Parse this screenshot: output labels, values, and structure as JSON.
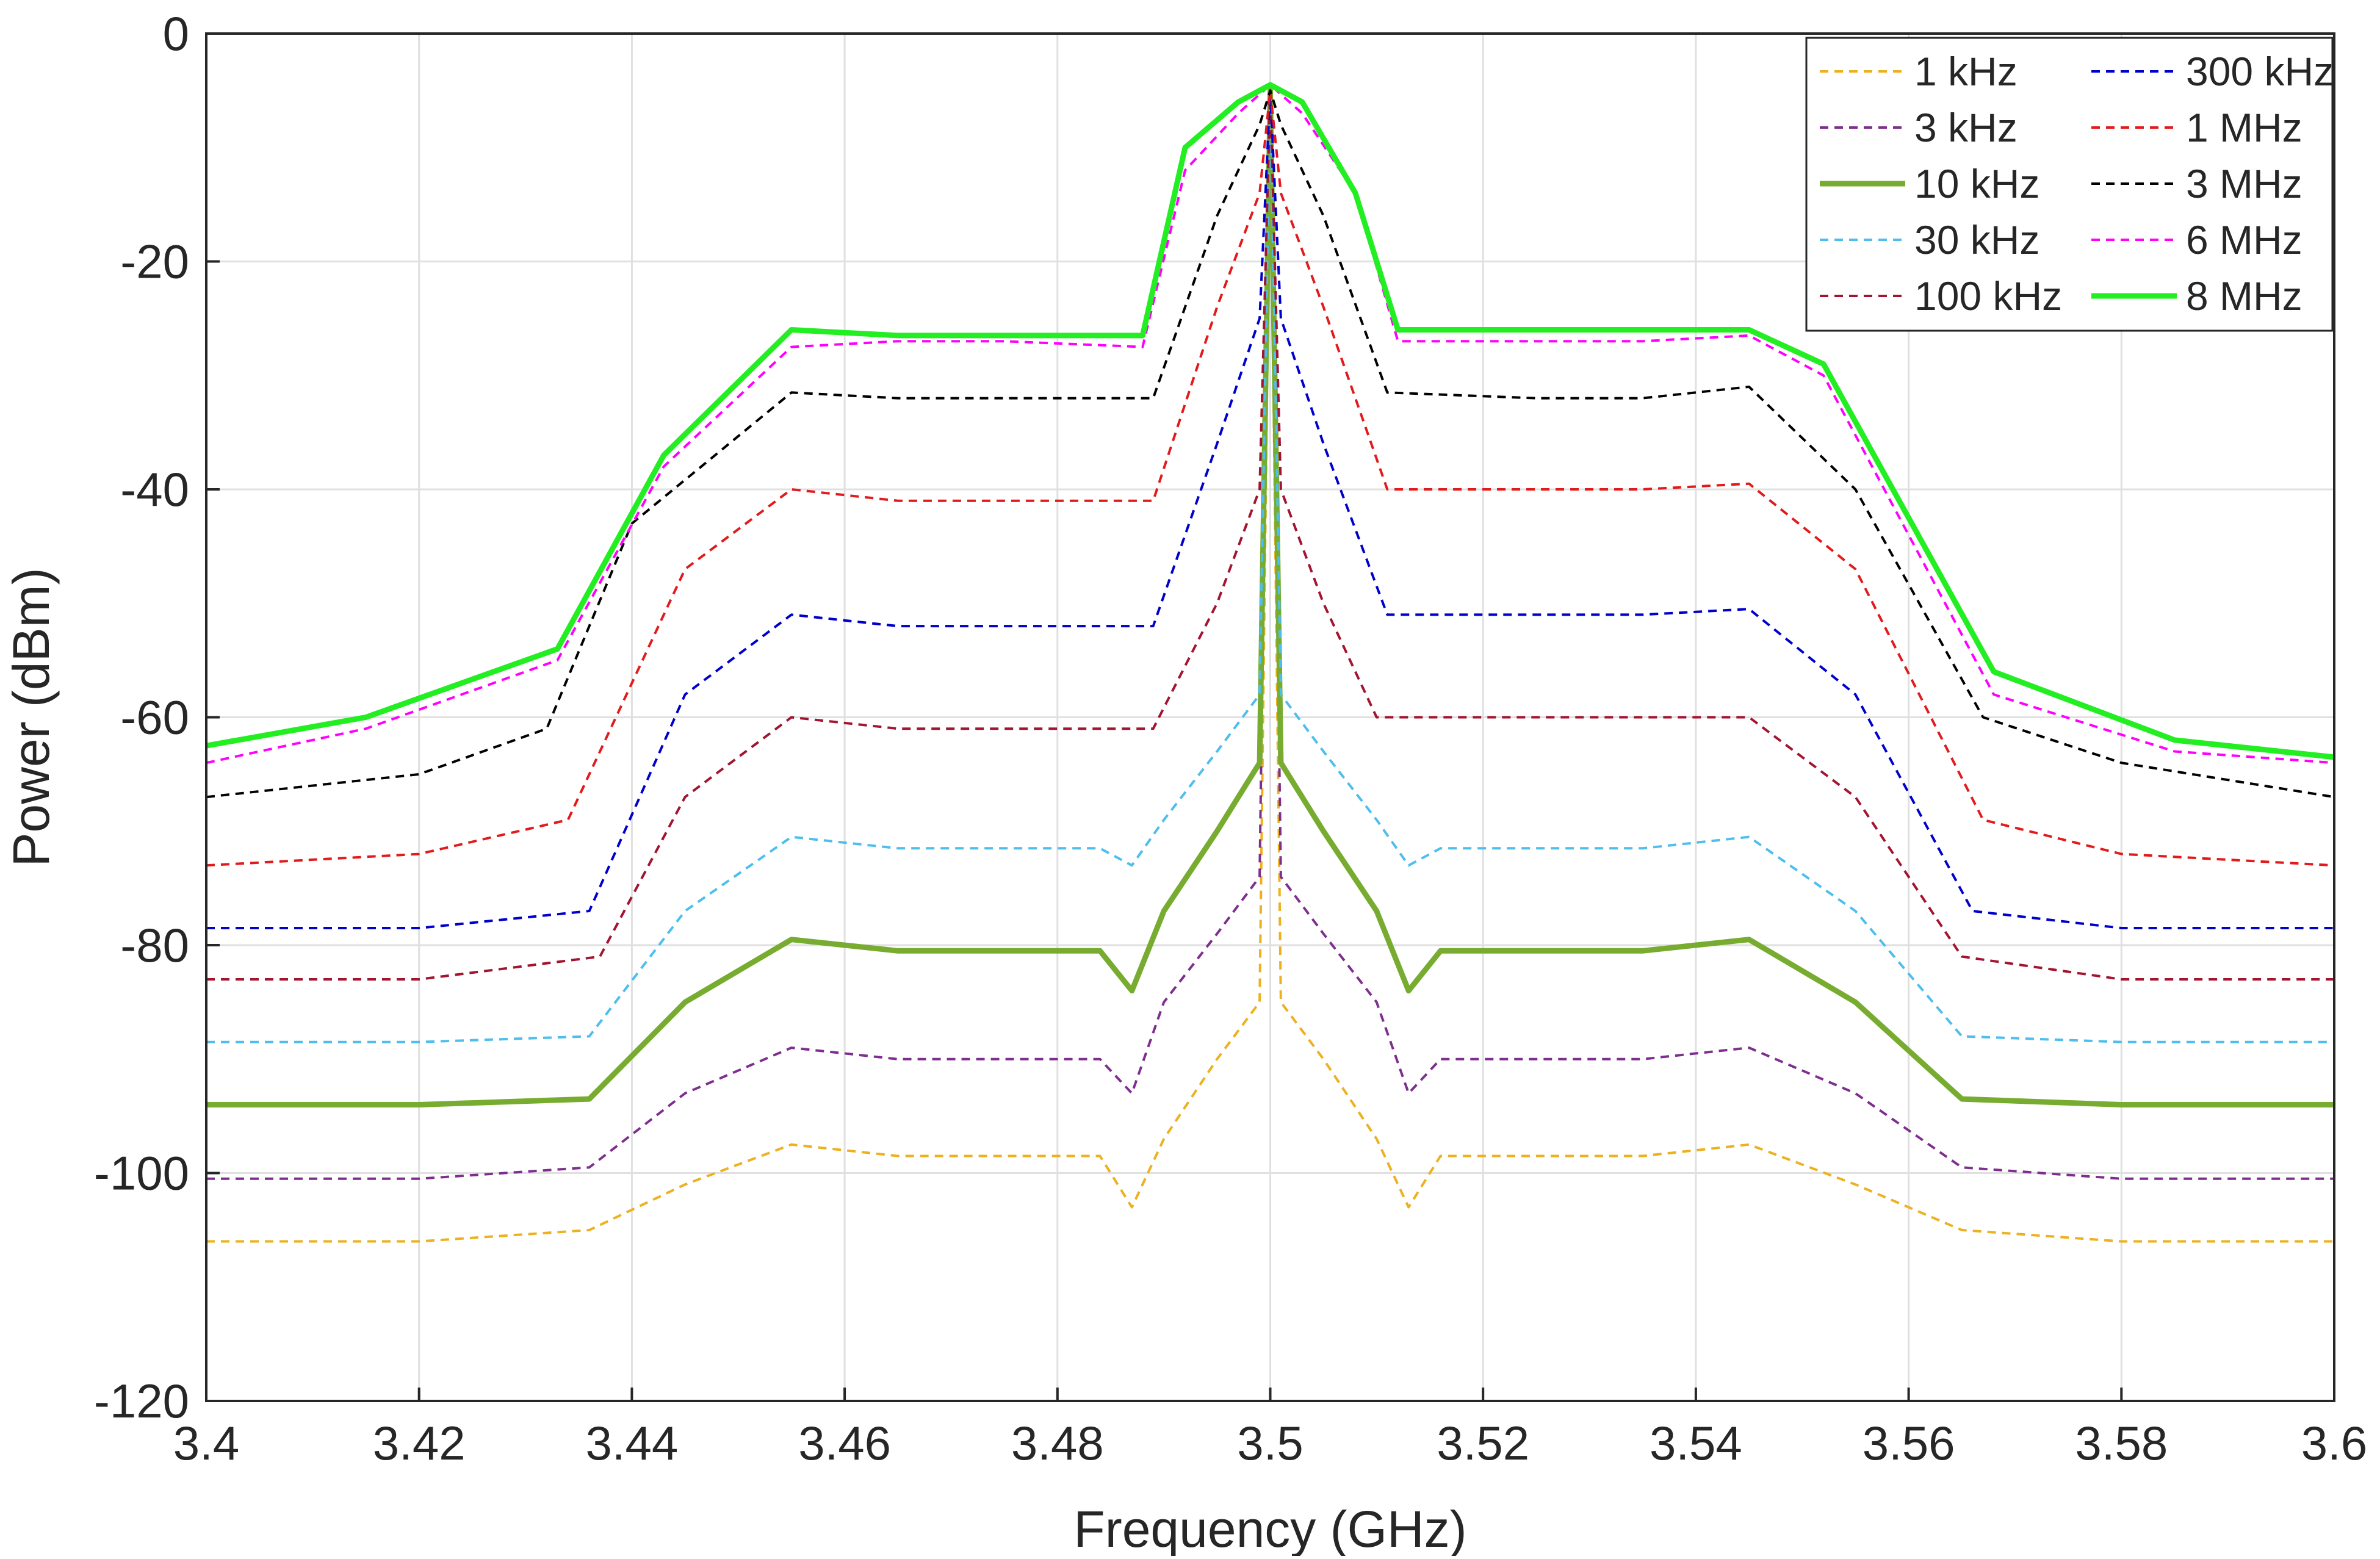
{
  "chart_data": {
    "type": "line",
    "title": "",
    "xlabel": "Frequency (GHz)",
    "ylabel": "Power (dBm)",
    "xlim": [
      3.4,
      3.6
    ],
    "ylim": [
      -120,
      0
    ],
    "xticks": [
      3.4,
      3.42,
      3.44,
      3.46,
      3.48,
      3.5,
      3.52,
      3.54,
      3.56,
      3.58,
      3.6
    ],
    "xtick_labels": [
      "3.4",
      "3.42",
      "3.44",
      "3.46",
      "3.48",
      "3.5",
      "3.52",
      "3.54",
      "3.56",
      "3.58",
      "3.6"
    ],
    "yticks": [
      0,
      -20,
      -40,
      -60,
      -80,
      -100,
      -120
    ],
    "ytick_labels": [
      "0",
      "-20",
      "-40",
      "-60",
      "-80",
      "-100",
      "-120"
    ],
    "grid": true,
    "legend_position": "top-right",
    "legend_columns": 2,
    "series": [
      {
        "name": "1 kHz",
        "color": "#EDB120",
        "dash": "dashed",
        "x": [
          3.4,
          3.42,
          3.436,
          3.445,
          3.455,
          3.465,
          3.475,
          3.484,
          3.487,
          3.49,
          3.495,
          3.499,
          3.5,
          3.501,
          3.505,
          3.51,
          3.513,
          3.516,
          3.525,
          3.535,
          3.545,
          3.555,
          3.565,
          3.58,
          3.6
        ],
        "y": [
          -106,
          -106,
          -105,
          -101,
          -97.5,
          -98.5,
          -98.5,
          -98.5,
          -103,
          -97,
          -90,
          -85,
          -8,
          -85,
          -90,
          -97,
          -103,
          -98.5,
          -98.5,
          -98.5,
          -97.5,
          -101,
          -105,
          -106,
          -106
        ]
      },
      {
        "name": "3 kHz",
        "color": "#7E2F8E",
        "dash": "dashed",
        "x": [
          3.4,
          3.42,
          3.436,
          3.445,
          3.455,
          3.465,
          3.475,
          3.484,
          3.487,
          3.49,
          3.495,
          3.499,
          3.5,
          3.501,
          3.505,
          3.51,
          3.513,
          3.516,
          3.525,
          3.535,
          3.545,
          3.555,
          3.565,
          3.58,
          3.6
        ],
        "y": [
          -100.5,
          -100.5,
          -99.5,
          -93,
          -89,
          -90,
          -90,
          -90,
          -93,
          -85,
          -79,
          -74,
          -5,
          -74,
          -79,
          -85,
          -93,
          -90,
          -90,
          -90,
          -89,
          -93,
          -99.5,
          -100.5,
          -100.5
        ]
      },
      {
        "name": "10 kHz",
        "color": "#77AC30",
        "dash": "solid",
        "width": "thick",
        "x": [
          3.4,
          3.42,
          3.436,
          3.445,
          3.455,
          3.465,
          3.475,
          3.484,
          3.487,
          3.49,
          3.495,
          3.499,
          3.5,
          3.501,
          3.505,
          3.51,
          3.513,
          3.516,
          3.525,
          3.535,
          3.545,
          3.555,
          3.565,
          3.58,
          3.6
        ],
        "y": [
          -94,
          -94,
          -93.5,
          -85,
          -79.5,
          -80.5,
          -80.5,
          -80.5,
          -84,
          -77,
          -70,
          -64,
          -5,
          -64,
          -70,
          -77,
          -84,
          -80.5,
          -80.5,
          -80.5,
          -79.5,
          -85,
          -93.5,
          -94,
          -94
        ]
      },
      {
        "name": "30 kHz",
        "color": "#4DBEEE",
        "dash": "dashed",
        "x": [
          3.4,
          3.42,
          3.436,
          3.445,
          3.455,
          3.465,
          3.475,
          3.484,
          3.487,
          3.49,
          3.495,
          3.499,
          3.5,
          3.501,
          3.505,
          3.51,
          3.513,
          3.516,
          3.525,
          3.535,
          3.545,
          3.555,
          3.565,
          3.58,
          3.6
        ],
        "y": [
          -88.5,
          -88.5,
          -88,
          -77,
          -70.5,
          -71.5,
          -71.5,
          -71.5,
          -73,
          -69,
          -63,
          -58,
          -5,
          -58,
          -63,
          -69,
          -73,
          -71.5,
          -71.5,
          -71.5,
          -70.5,
          -77,
          -88,
          -88.5,
          -88.5
        ]
      },
      {
        "name": "100 kHz",
        "color": "#A2142F",
        "dash": "dashed",
        "x": [
          3.4,
          3.42,
          3.437,
          3.445,
          3.455,
          3.465,
          3.475,
          3.489,
          3.495,
          3.499,
          3.5,
          3.501,
          3.505,
          3.51,
          3.525,
          3.535,
          3.545,
          3.555,
          3.565,
          3.58,
          3.6
        ],
        "y": [
          -83,
          -83,
          -81,
          -67,
          -60,
          -61,
          -61,
          -61,
          -50,
          -40,
          -5,
          -40,
          -50,
          -60,
          -60,
          -60,
          -60,
          -67,
          -81,
          -83,
          -83
        ]
      },
      {
        "name": "300 kHz",
        "color": "#0000CC",
        "dash": "dashed",
        "x": [
          3.4,
          3.42,
          3.436,
          3.445,
          3.455,
          3.465,
          3.475,
          3.489,
          3.495,
          3.499,
          3.5,
          3.501,
          3.505,
          3.511,
          3.525,
          3.535,
          3.545,
          3.555,
          3.566,
          3.58,
          3.6
        ],
        "y": [
          -78.5,
          -78.5,
          -77,
          -58,
          -51,
          -52,
          -52,
          -52,
          -36,
          -25,
          -5,
          -25,
          -36,
          -51,
          -51,
          -51,
          -50.5,
          -58,
          -77,
          -78.5,
          -78.5
        ]
      },
      {
        "name": "1 MHz",
        "color": "#E31A1C",
        "dash": "dashed",
        "x": [
          3.4,
          3.42,
          3.434,
          3.445,
          3.455,
          3.465,
          3.475,
          3.489,
          3.495,
          3.499,
          3.5,
          3.501,
          3.505,
          3.511,
          3.525,
          3.535,
          3.545,
          3.555,
          3.567,
          3.58,
          3.6
        ],
        "y": [
          -73,
          -72,
          -69,
          -47,
          -40,
          -41,
          -41,
          -41,
          -24,
          -14,
          -5,
          -14,
          -24,
          -40,
          -40,
          -40,
          -39.5,
          -47,
          -69,
          -72,
          -73
        ]
      },
      {
        "name": "3 MHz",
        "color": "#000000",
        "dash": "dashed",
        "x": [
          3.4,
          3.42,
          3.432,
          3.44,
          3.455,
          3.465,
          3.475,
          3.489,
          3.495,
          3.499,
          3.5,
          3.501,
          3.505,
          3.511,
          3.525,
          3.535,
          3.545,
          3.555,
          3.567,
          3.58,
          3.6
        ],
        "y": [
          -67,
          -65,
          -61,
          -43,
          -31.5,
          -32,
          -32,
          -32,
          -16,
          -8,
          -5,
          -8,
          -16,
          -31.5,
          -32,
          -32,
          -31,
          -40,
          -60,
          -64,
          -67
        ]
      },
      {
        "name": "6 MHz",
        "color": "#FF00FF",
        "dash": "dashed",
        "x": [
          3.4,
          3.415,
          3.433,
          3.443,
          3.455,
          3.465,
          3.475,
          3.488,
          3.492,
          3.497,
          3.5,
          3.503,
          3.508,
          3.512,
          3.525,
          3.535,
          3.545,
          3.552,
          3.568,
          3.585,
          3.6
        ],
        "y": [
          -64,
          -61,
          -55,
          -38,
          -27.5,
          -27,
          -27,
          -27.5,
          -12,
          -7,
          -4.5,
          -7,
          -14,
          -27,
          -27,
          -27,
          -26.5,
          -30,
          -58,
          -63,
          -64
        ]
      },
      {
        "name": "8 MHz",
        "color": "#22EE22",
        "dash": "solid",
        "width": "thick",
        "x": [
          3.4,
          3.415,
          3.433,
          3.443,
          3.455,
          3.465,
          3.475,
          3.488,
          3.492,
          3.497,
          3.5,
          3.503,
          3.508,
          3.512,
          3.525,
          3.535,
          3.545,
          3.552,
          3.568,
          3.585,
          3.6
        ],
        "y": [
          -62.5,
          -60,
          -54,
          -37,
          -26,
          -26.5,
          -26.5,
          -26.5,
          -10,
          -6,
          -4.5,
          -6,
          -14,
          -26,
          -26,
          -26,
          -26,
          -29,
          -56,
          -62,
          -63.5
        ]
      }
    ]
  }
}
